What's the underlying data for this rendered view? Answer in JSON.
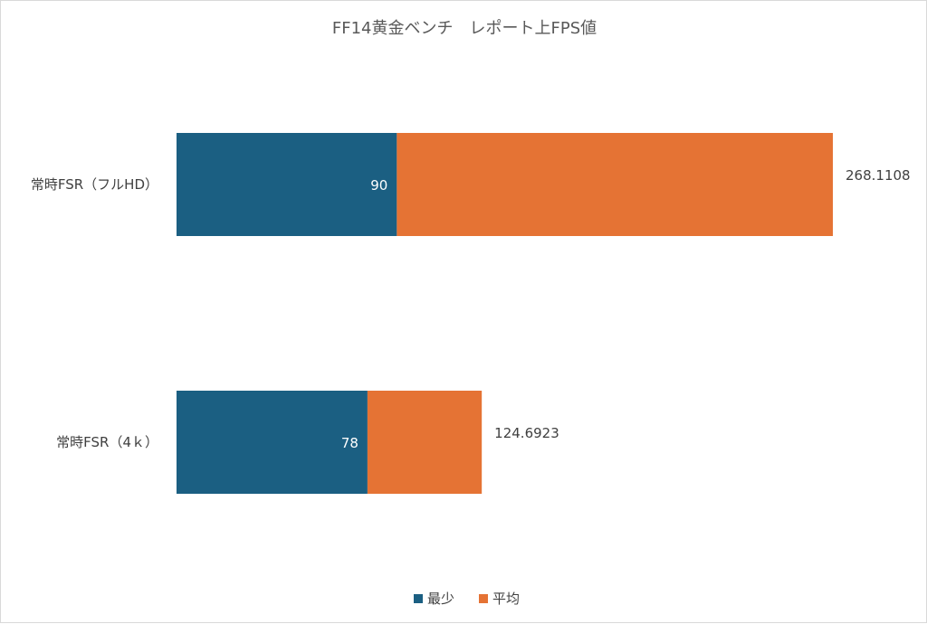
{
  "chart_data": {
    "type": "bar",
    "orientation": "horizontal",
    "stacked": true,
    "title": "FF14黄金ベンチ　レポート上FPS値",
    "categories": [
      "常時FSR（フルHD）",
      "常時FSR（4ｋ）"
    ],
    "series": [
      {
        "name": "最少",
        "color": "#1b5f82",
        "values": [
          90,
          78
        ],
        "labels": [
          "90",
          "78"
        ]
      },
      {
        "name": "平均",
        "color": "#e57334",
        "values": [
          268.1108,
          124.6923
        ],
        "labels": [
          "268.1108",
          "124.6923"
        ]
      }
    ],
    "segment_values_note": "平均 segment drawn spanning to the 平均 value",
    "grid": false,
    "legend_position": "bottom"
  }
}
